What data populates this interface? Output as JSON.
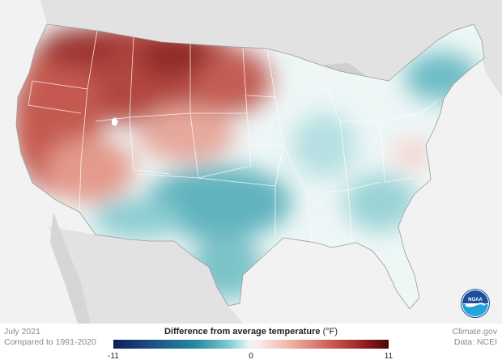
{
  "footer": {
    "date": "July 2021",
    "baseline": "Compared to 1991-2020",
    "source_site": "Climate.gov",
    "source_data": "Data: NCEI"
  },
  "legend": {
    "title": "Difference from average temperature",
    "unit": "(°F)",
    "min": "-11",
    "mid": "0",
    "max": "11",
    "colors": [
      "#0d1f57",
      "#268a9e",
      "#e4f4f4",
      "#c9574d",
      "#4a0707"
    ]
  },
  "logo": {
    "text": "NOAA"
  },
  "map": {
    "region": "contiguous-united-states",
    "warm_regions": [
      "Pacific Northwest",
      "California",
      "Northern Rockies",
      "Northern Plains",
      "Great Basin"
    ],
    "cool_regions": [
      "Southern Plains",
      "Texas",
      "New England",
      "Southeast",
      "Ohio Valley"
    ]
  }
}
